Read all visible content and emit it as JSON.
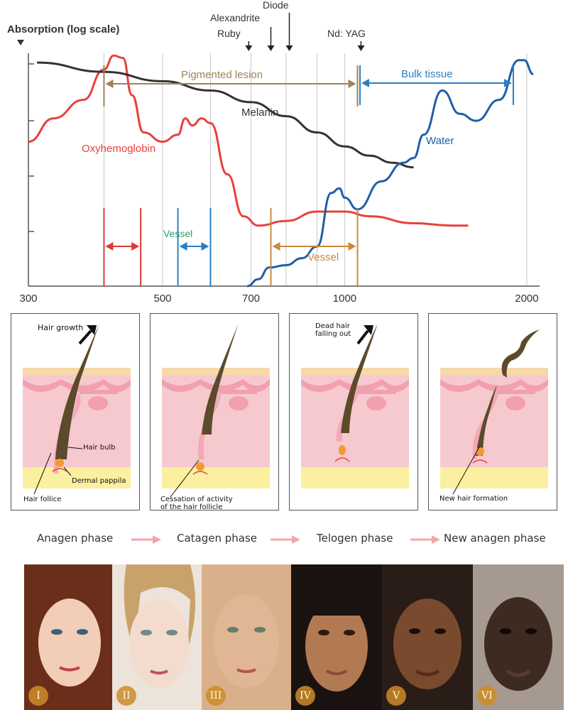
{
  "chart_data": {
    "type": "line",
    "title": "",
    "ylabel": "Absorption (log scale)",
    "xlabel": "",
    "x_scale": "log",
    "xlim": [
      300,
      2100
    ],
    "x_ticks": [
      300,
      500,
      700,
      1000,
      2000
    ],
    "x_tick_labels": [
      "300",
      "500",
      "700",
      "1000",
      "2000"
    ],
    "grid": true,
    "series": [
      {
        "name": "Oxyhemoglobin",
        "color": "#e8413c",
        "points": [
          [
            300,
            0.62
          ],
          [
            330,
            0.72
          ],
          [
            370,
            0.8
          ],
          [
            400,
            0.93
          ],
          [
            415,
            0.99
          ],
          [
            430,
            0.98
          ],
          [
            445,
            0.82
          ],
          [
            465,
            0.66
          ],
          [
            500,
            0.62
          ],
          [
            530,
            0.65
          ],
          [
            545,
            0.72
          ],
          [
            560,
            0.69
          ],
          [
            580,
            0.72
          ],
          [
            600,
            0.7
          ],
          [
            640,
            0.48
          ],
          [
            680,
            0.3
          ],
          [
            720,
            0.26
          ],
          [
            800,
            0.28
          ],
          [
            900,
            0.32
          ],
          [
            1000,
            0.32
          ],
          [
            1100,
            0.3
          ],
          [
            1300,
            0.27
          ],
          [
            1500,
            0.26
          ],
          [
            1600,
            0.26
          ]
        ]
      },
      {
        "name": "Melanin",
        "color": "#333333",
        "points": [
          [
            310,
            0.96
          ],
          [
            400,
            0.92
          ],
          [
            500,
            0.88
          ],
          [
            600,
            0.84
          ],
          [
            700,
            0.79
          ],
          [
            800,
            0.73
          ],
          [
            900,
            0.66
          ],
          [
            1000,
            0.6
          ],
          [
            1100,
            0.56
          ],
          [
            1200,
            0.53
          ],
          [
            1300,
            0.51
          ]
        ]
      },
      {
        "name": "Water",
        "color": "#1f5fa8",
        "points": [
          [
            690,
            0.0
          ],
          [
            720,
            0.03
          ],
          [
            750,
            0.08
          ],
          [
            800,
            0.09
          ],
          [
            850,
            0.12
          ],
          [
            900,
            0.17
          ],
          [
            950,
            0.4
          ],
          [
            980,
            0.42
          ],
          [
            1000,
            0.38
          ],
          [
            1050,
            0.33
          ],
          [
            1150,
            0.45
          ],
          [
            1250,
            0.53
          ],
          [
            1300,
            0.55
          ],
          [
            1350,
            0.65
          ],
          [
            1450,
            0.84
          ],
          [
            1550,
            0.74
          ],
          [
            1650,
            0.71
          ],
          [
            1800,
            0.8
          ],
          [
            1940,
            0.97
          ],
          [
            1980,
            0.97
          ],
          [
            2050,
            0.91
          ]
        ]
      }
    ],
    "wavelength_labels": [
      "Alexandrite",
      "Ruby",
      "Diode",
      "Nd: YAG"
    ],
    "laser_markers_nm": [
      694,
      755,
      810,
      1064
    ],
    "ranges": [
      {
        "label": "Pigmented lesion",
        "from": 400,
        "to": 1050,
        "color": "#a0825a"
      },
      {
        "label": "Bulk tissue",
        "from": 1060,
        "to": 1900,
        "color": "#2a7fc4"
      },
      {
        "label": "",
        "from": 400,
        "to": 460,
        "color": "#d93a35"
      },
      {
        "label": "Vessel",
        "from": 530,
        "to": 600,
        "color": "#2a7fc4"
      },
      {
        "label": "Vessel",
        "from": 755,
        "to": 1050,
        "color": "#c98a3a"
      }
    ]
  },
  "labels": {
    "axis": "Absorption (log scale)",
    "alexandrite": "Alexandrite",
    "ruby": "Ruby",
    "diode": "Diode",
    "ndyag": "Nd: YAG",
    "pigmented": "Pigmented lesion",
    "bulk": "Bulk tissue",
    "melanin": "Melanin",
    "oxy": "Oxyhemoglobin",
    "water": "Water",
    "vessel1": "Vessel",
    "vessel2": "Vessel"
  },
  "colors": {
    "oxy": "#e8413c",
    "melanin": "#333333",
    "water": "#1f5fa8",
    "pigmented": "#a0825a",
    "bulk": "#2a7fc4",
    "vessel_orange": "#c98a3a",
    "red_range": "#d93a35",
    "skin_pink": "#f6c9cf",
    "skin_top": "#f7d9a8",
    "fat": "#faf0a0",
    "hair": "#5c4a2a",
    "papilla": "#f39a32",
    "arrow_pink": "#f4a4ae"
  },
  "panels": {
    "p1": {
      "top": "Hair growth",
      "bulb": "Hair bulb",
      "papilla": "Dermal pappila",
      "follicle": "Hair follice"
    },
    "p2": {
      "line1": "Cessation of activity",
      "line2": "of the hair follicle"
    },
    "p3": {
      "line1": "Dead hair",
      "line2": "falling out"
    },
    "p4": {
      "bottom": "New hair formation"
    }
  },
  "phases": [
    "Anagen phase",
    "Catagen phase",
    "Telogen phase",
    "New anagen phase"
  ],
  "skin_types": {
    "numerals": [
      "I",
      "II",
      "III",
      "IV",
      "V",
      "VI"
    ],
    "tones": [
      "#f2cdb8",
      "#f3dccd",
      "#e1b694",
      "#b27a52",
      "#7a4a2e",
      "#3d2a20"
    ]
  }
}
